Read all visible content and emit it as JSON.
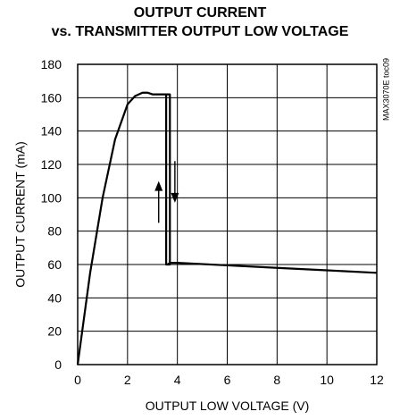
{
  "chart_data": {
    "type": "line",
    "title": "OUTPUT CURRENT",
    "subtitle": "vs. TRANSMITTER OUTPUT LOW VOLTAGE",
    "xlabel": "OUTPUT LOW VOLTAGE (V)",
    "ylabel": "OUTPUT CURRENT (mA)",
    "xlim": [
      0,
      12
    ],
    "ylim": [
      0,
      180
    ],
    "xticks": [
      0,
      2,
      4,
      6,
      8,
      10,
      12
    ],
    "yticks": [
      0,
      20,
      40,
      60,
      80,
      100,
      120,
      140,
      160,
      180
    ],
    "grid": true,
    "annotation": "MAX3070E toc09",
    "series": [
      {
        "x": [
          0,
          0.5,
          1.0,
          1.5,
          2.0,
          2.3,
          2.6,
          2.8,
          3.0,
          3.4,
          3.55,
          3.55,
          3.6,
          3.7,
          3.7,
          3.55,
          3.55,
          3.6,
          3.7,
          4.0,
          6.0,
          8.0,
          10.0,
          12.0
        ],
        "y": [
          0,
          55,
          100,
          135,
          156,
          161,
          163,
          163,
          162,
          162,
          162,
          60,
          60,
          60,
          162,
          162,
          60,
          60,
          61,
          61,
          59.5,
          58,
          56.5,
          55
        ]
      }
    ],
    "arrows": [
      {
        "direction": "up",
        "x": 3.25,
        "y_from": 85,
        "y_to": 110
      },
      {
        "direction": "down",
        "x": 3.9,
        "y_from": 122,
        "y_to": 97
      }
    ]
  }
}
